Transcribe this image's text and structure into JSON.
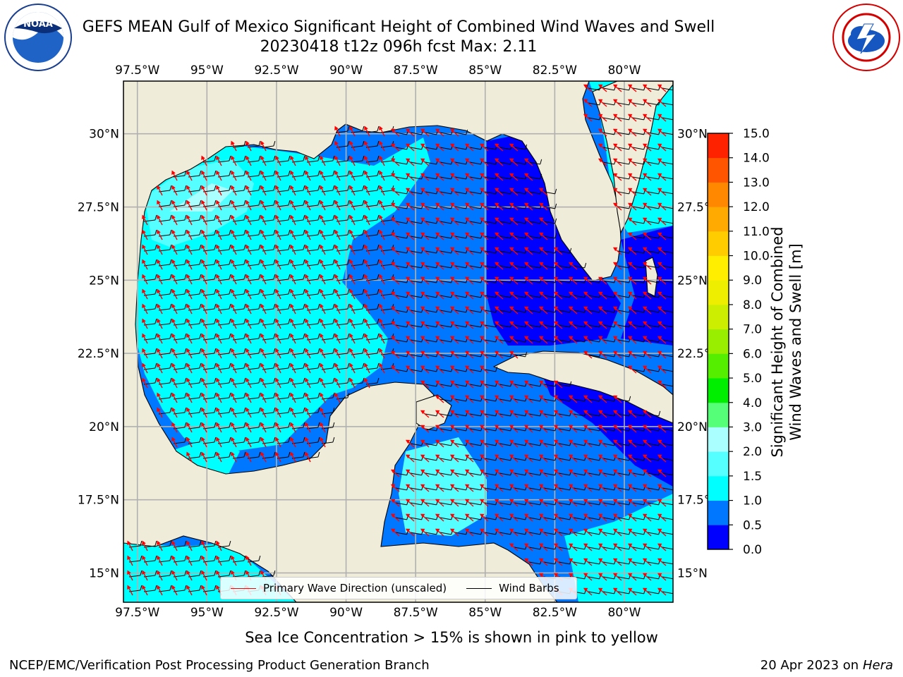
{
  "header": {
    "title_line1": "GEFS MEAN Gulf of Mexico Significant Height of Combined Wind Waves and Swell",
    "title_line2": "20230418 t12z 096h fcst   Max: 2.11"
  },
  "logos": {
    "left": {
      "name": "NOAA",
      "ring_text": "NATIONAL OCEANIC AND ATMOSPHERIC ADMINISTRATION · U.S. DEPARTMENT OF COMMERCE"
    },
    "right": {
      "name": "NATIONAL WEATHER SERVICE"
    }
  },
  "map": {
    "lon_ticks": [
      "97.5°W",
      "95°W",
      "92.5°W",
      "90°W",
      "87.5°W",
      "85°W",
      "82.5°W",
      "80°W"
    ],
    "lat_ticks": [
      "30°N",
      "27.5°N",
      "25°N",
      "22.5°N",
      "20°N",
      "17.5°N",
      "15°N"
    ],
    "lon_values": [
      -97.5,
      -95,
      -92.5,
      -90,
      -87.5,
      -85,
      -82.5,
      -80
    ],
    "lat_values": [
      30,
      27.5,
      25,
      22.5,
      20,
      17.5,
      15
    ],
    "extent": {
      "lon_min": -98,
      "lon_max": -78.25,
      "lat_min": 14,
      "lat_max": 31.8
    },
    "colors": {
      "land": "#efedda",
      "grid": "#b0b0b0",
      "wave_arrow": "#ff0000",
      "wind_barb": "#000000"
    }
  },
  "colorbar": {
    "title": "Significant Height of Combined\nWind Waves and Swell [m]",
    "tick_labels": [
      "0.0",
      "0.5",
      "1.0",
      "1.5",
      "2.0",
      "3.0",
      "4.0",
      "5.0",
      "6.0",
      "7.0",
      "8.0",
      "9.0",
      "10.0",
      "11.0",
      "12.0",
      "13.0",
      "14.0",
      "15.0"
    ],
    "levels": [
      0.0,
      0.5,
      1.0,
      1.5,
      2.0,
      3.0,
      4.0,
      5.0,
      6.0,
      7.0,
      8.0,
      9.0,
      10.0,
      11.0,
      12.0,
      13.0,
      14.0,
      15.0
    ],
    "colors": [
      "#0000ff",
      "#0077ff",
      "#00ffff",
      "#55ffff",
      "#aaffff",
      "#55ff77",
      "#00ee00",
      "#55ee00",
      "#99ee00",
      "#ccee00",
      "#eeee00",
      "#ffee00",
      "#ffcc00",
      "#ffaa00",
      "#ff8800",
      "#ff5500",
      "#ff2200"
    ]
  },
  "legend": {
    "wave_label": "Primary Wave Direction (unscaled)",
    "wind_label": "Wind Barbs"
  },
  "footer": {
    "note": "Sea Ice Concentration > 15% is shown in pink to yellow",
    "left": "NCEP/EMC/Verification Post Processing Product Generation Branch",
    "right_prefix": "20 Apr 2023 on ",
    "right_italic": "Hera"
  }
}
